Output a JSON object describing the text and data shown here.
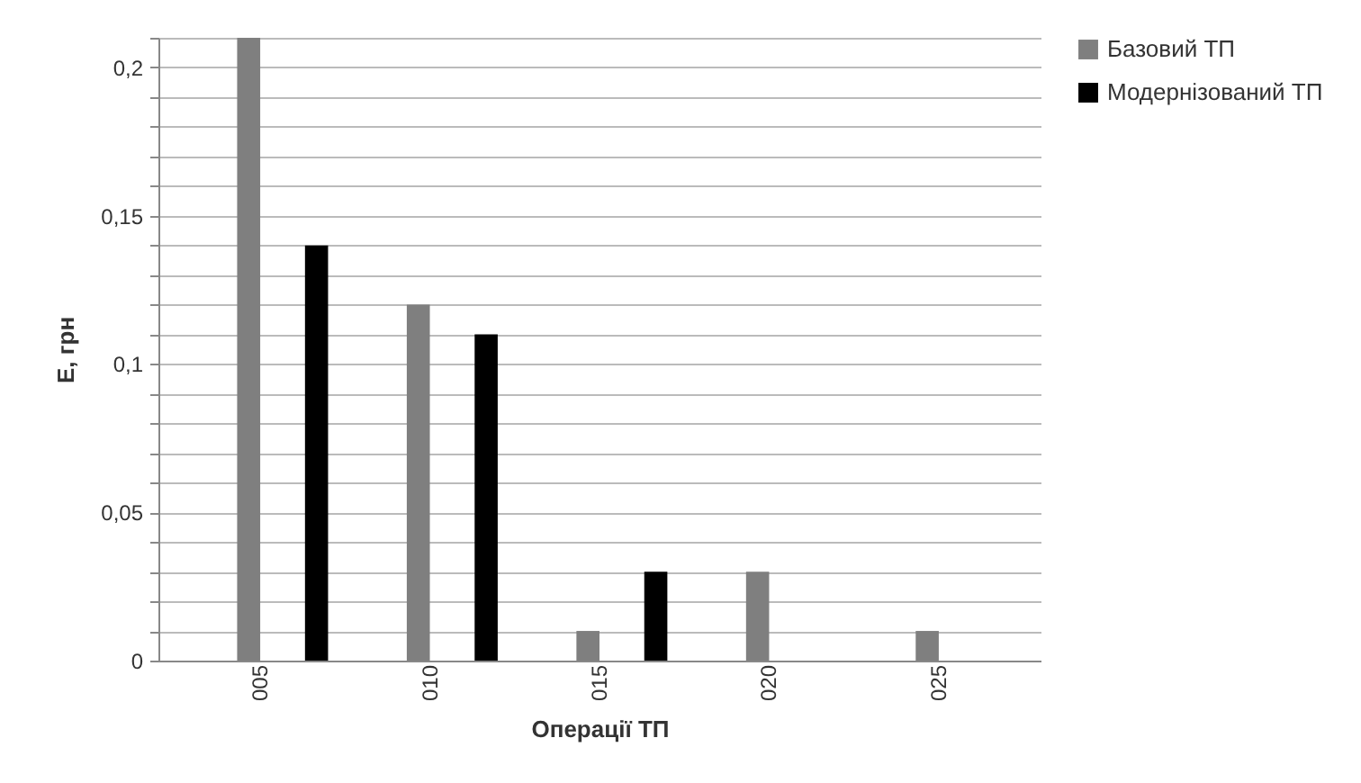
{
  "chart_data": {
    "type": "bar",
    "xlabel": "Операції ТП",
    "ylabel": "Е, грн",
    "categories": [
      "005",
      "010",
      "015",
      "020",
      "025"
    ],
    "series": [
      {
        "name": "Базовий ТП",
        "color": "#7f7f7f",
        "values": [
          0.21,
          0.12,
          0.01,
          0.03,
          0.01
        ]
      },
      {
        "name": "Модернізований ТП",
        "color": "#000000",
        "values": [
          0.14,
          0.11,
          0.03,
          null,
          null
        ]
      }
    ],
    "ylim": [
      0,
      0.21
    ],
    "yticks": [
      {
        "value": 0,
        "label": "0"
      },
      {
        "value": 0.01,
        "label": null
      },
      {
        "value": 0.02,
        "label": null
      },
      {
        "value": 0.03,
        "label": null
      },
      {
        "value": 0.04,
        "label": null
      },
      {
        "value": 0.05,
        "label": "0,05"
      },
      {
        "value": 0.06,
        "label": null
      },
      {
        "value": 0.07,
        "label": null
      },
      {
        "value": 0.08,
        "label": null
      },
      {
        "value": 0.09,
        "label": null
      },
      {
        "value": 0.1,
        "label": "0,1"
      },
      {
        "value": 0.11,
        "label": null
      },
      {
        "value": 0.12,
        "label": null
      },
      {
        "value": 0.13,
        "label": null
      },
      {
        "value": 0.14,
        "label": null
      },
      {
        "value": 0.15,
        "label": "0,15"
      },
      {
        "value": 0.16,
        "label": null
      },
      {
        "value": 0.17,
        "label": null
      },
      {
        "value": 0.18,
        "label": null
      },
      {
        "value": 0.19,
        "label": null
      },
      {
        "value": 0.2,
        "label": "0,2"
      },
      {
        "value": 0.21,
        "label": null
      }
    ],
    "grid": "y",
    "legend": "right"
  }
}
